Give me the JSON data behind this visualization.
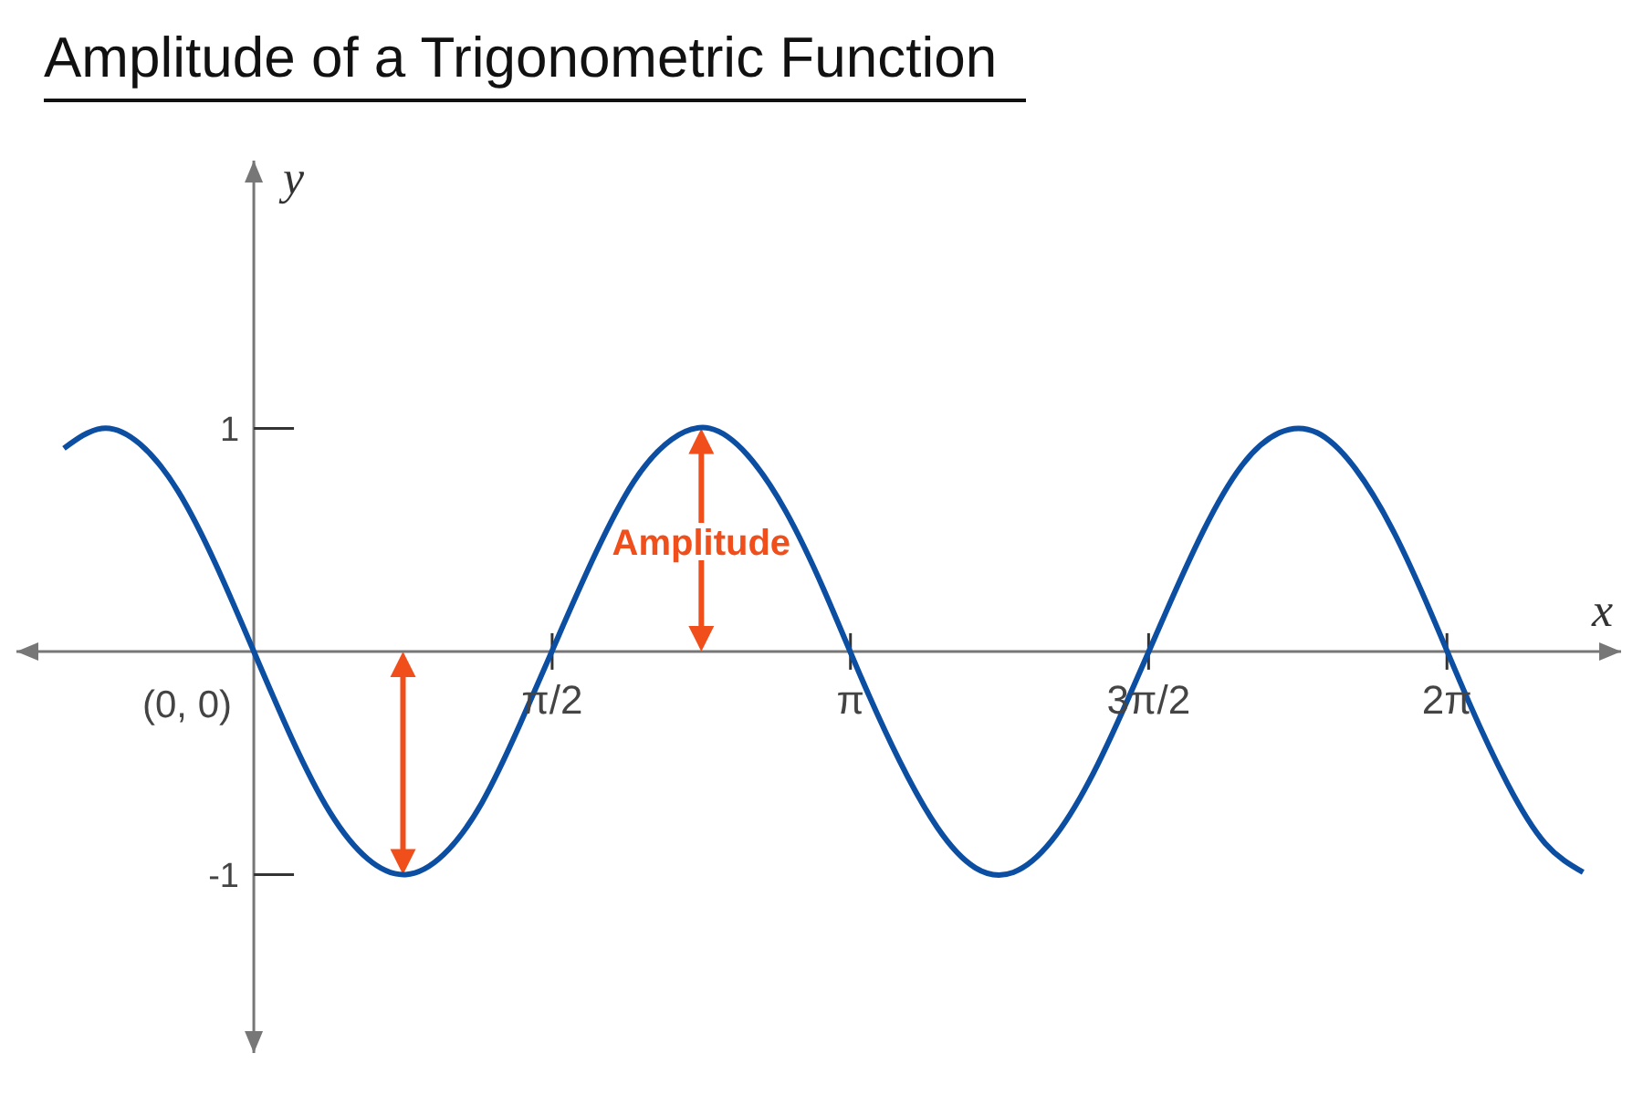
{
  "chart_data": {
    "type": "line",
    "title": "Amplitude of a Trigonometric Function",
    "xlabel": "x",
    "ylabel": "y",
    "x": [
      -1.0,
      -0.8,
      -0.6,
      -0.4,
      -0.2,
      0,
      0.2,
      0.4,
      0.6,
      0.8,
      1.0,
      1.2,
      1.4,
      1.6,
      1.8,
      2.0,
      2.2,
      2.4,
      2.6,
      2.8,
      3.0,
      3.2,
      3.4,
      3.6,
      3.8,
      4.0,
      4.2,
      4.4,
      4.6,
      4.8,
      5.0,
      5.2,
      5.4,
      5.6,
      5.8,
      6.0,
      6.2,
      6.4,
      6.6,
      6.8,
      7.0
    ],
    "series": [
      {
        "color": "#0b4ea2",
        "values": [
          0.91,
          1.0,
          0.93,
          0.72,
          0.39,
          0,
          -0.39,
          -0.72,
          -0.93,
          -1.0,
          -0.91,
          -0.68,
          -0.33,
          0.06,
          0.44,
          0.76,
          0.95,
          1.0,
          0.88,
          0.63,
          0.28,
          -0.12,
          -0.49,
          -0.79,
          -0.97,
          -0.99,
          -0.85,
          -0.58,
          -0.22,
          0.17,
          0.54,
          0.83,
          0.98,
          0.98,
          0.82,
          0.54,
          0.17,
          -0.23,
          -0.59,
          -0.86,
          -0.99
        ]
      }
    ],
    "xlim": [
      -1.25,
      7.2
    ],
    "ylim": [
      -1.8,
      2.2
    ],
    "xticks": [
      {
        "value": 1.571,
        "label": "π/2"
      },
      {
        "value": 3.142,
        "label": "π"
      },
      {
        "value": 4.712,
        "label": "3π/2"
      },
      {
        "value": 6.283,
        "label": "2π"
      }
    ],
    "yticks": [
      1,
      -1
    ],
    "annotations": [
      "Amplitude",
      {
        "text": "(0, 0)",
        "x": 0,
        "y": 0
      }
    ]
  }
}
